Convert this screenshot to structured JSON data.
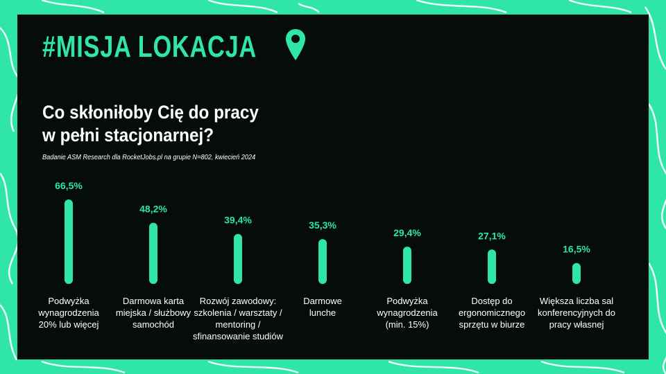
{
  "brand": {
    "text": "#MISJA LOKACJA",
    "icon": "map-pin-icon",
    "color": "#2fe6a8"
  },
  "title": {
    "line1": "Co skłoniłoby Cię do pracy",
    "line2": "w pełni stacjonarnej?"
  },
  "subtitle": "Badanie ASM Research dla RocketJobs.pl na grupie N=802, kwiecień 2024",
  "colors": {
    "accent": "#2fe6a8",
    "panel": "#050c0b",
    "text": "#ffffff"
  },
  "chart_data": {
    "type": "bar",
    "title": "Co skłoniłoby Cię do pracy w pełni stacjonarnej?",
    "categories": [
      "Podwyżka wynagrodzenia 20% lub więcej",
      "Darmowa karta miejska / służbowy samochód",
      "Rozwój zawodowy: szkolenia / warsztaty / mentoring / sfinansowanie studiów",
      "Darmowe lunche",
      "Podwyżka wynagrodzenia (min. 15%)",
      "Dostęp do ergonomicznego sprzętu w biurze",
      "Większa liczba sal konferencyjnych do pracy własnej"
    ],
    "values": [
      66.5,
      48.2,
      39.4,
      35.3,
      29.4,
      27.1,
      16.5
    ],
    "value_labels": [
      "66,5%",
      "48,2%",
      "39,4%",
      "35,3%",
      "29,4%",
      "27,1%",
      "16,5%"
    ],
    "label_lines": [
      [
        "Podwyżka",
        "wynagrodzenia",
        "20% lub więcej"
      ],
      [
        "Darmowa karta",
        "miejska / służbowy",
        "samochód"
      ],
      [
        "Rozwój zawodowy:",
        "szkolenia / warsztaty /",
        "mentoring /",
        "sfinansowanie studiów"
      ],
      [
        "Darmowe",
        "lunche"
      ],
      [
        "Podwyżka",
        "wynagrodzenia",
        "(min. 15%)"
      ],
      [
        "Dostęp do",
        "ergonomicznego",
        "sprzętu w biurze"
      ],
      [
        "Większa liczba sal",
        "konferencyjnych do",
        "pracy własnej"
      ]
    ],
    "xlabel": "",
    "ylabel": "",
    "ylim": [
      0,
      66.5
    ],
    "grid": false,
    "legend": "none",
    "bar_color": "#2fe6a8"
  }
}
